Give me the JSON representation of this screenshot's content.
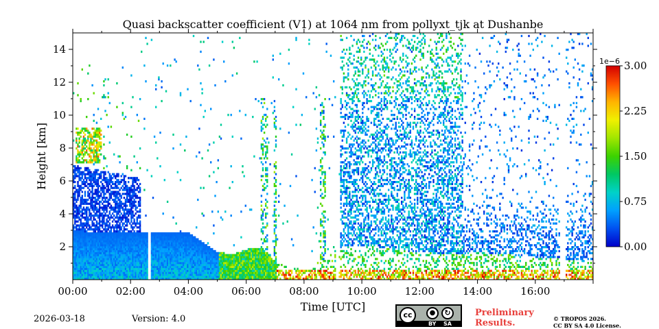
{
  "chart_data": {
    "type": "heatmap",
    "title": "Quasi backscatter coefficient (V1) at 1064 nm from pollyxt_tjk at Dushanbe",
    "xlabel": "Time [UTC]",
    "ylabel": "Height [km]",
    "x_range_hours": [
      0,
      18
    ],
    "y_range_km": [
      0,
      15
    ],
    "x_ticks": [
      {
        "value": 0,
        "label": "00:00"
      },
      {
        "value": 2,
        "label": "02:00"
      },
      {
        "value": 4,
        "label": "04:00"
      },
      {
        "value": 6,
        "label": "06:00"
      },
      {
        "value": 8,
        "label": "08:00"
      },
      {
        "value": 10,
        "label": "10:00"
      },
      {
        "value": 12,
        "label": "12:00"
      },
      {
        "value": 14,
        "label": "14:00"
      },
      {
        "value": 16,
        "label": "16:00"
      }
    ],
    "y_ticks": [
      {
        "value": 2,
        "label": "2"
      },
      {
        "value": 4,
        "label": "4"
      },
      {
        "value": 6,
        "label": "6"
      },
      {
        "value": 8,
        "label": "8"
      },
      {
        "value": 10,
        "label": "10"
      },
      {
        "value": 12,
        "label": "12"
      },
      {
        "value": 14,
        "label": "14"
      }
    ],
    "colorbar": {
      "range": [
        0,
        3.0
      ],
      "exponent_label": "1e−6",
      "ticks": [
        {
          "value": 0.0,
          "label": "0.00"
        },
        {
          "value": 0.75,
          "label": "0.75"
        },
        {
          "value": 1.5,
          "label": "1.50"
        },
        {
          "value": 2.25,
          "label": "2.25"
        },
        {
          "value": 3.0,
          "label": "3.00"
        }
      ],
      "colors": [
        "#0000c8",
        "#0050f0",
        "#00a0ff",
        "#00d2c8",
        "#00c864",
        "#3cd200",
        "#a0e600",
        "#f0f000",
        "#ffb400",
        "#ff5000",
        "#d20000"
      ]
    },
    "data_gaps_hours": [
      [
        2.58,
        2.7
      ],
      [
        9.08,
        9.2
      ],
      [
        16.85,
        17.05
      ]
    ],
    "boundary_layer_top_km": [
      [
        0.0,
        2.9
      ],
      [
        1.0,
        2.85
      ],
      [
        2.5,
        2.85
      ],
      [
        3.0,
        2.85
      ],
      [
        4.0,
        2.8
      ],
      [
        4.5,
        2.2
      ],
      [
        5.0,
        1.6
      ],
      [
        5.5,
        1.5
      ],
      [
        6.0,
        1.8
      ],
      [
        6.5,
        1.9
      ],
      [
        7.0,
        1.0
      ],
      [
        8.0,
        0.5
      ],
      [
        9.3,
        1.9
      ],
      [
        10.0,
        2.0
      ],
      [
        11.0,
        1.8
      ],
      [
        12.0,
        1.6
      ],
      [
        13.0,
        1.5
      ],
      [
        14.0,
        1.6
      ],
      [
        15.0,
        1.5
      ],
      [
        16.0,
        1.3
      ],
      [
        17.0,
        1.2
      ],
      [
        18.0,
        1.0
      ]
    ],
    "aerosol_layer": {
      "start_hour": 0,
      "end_hour": 2.3,
      "top_km_start": 6.9,
      "top_km_end": 6.1
    },
    "elevated_layer": {
      "start_hour": 0.1,
      "end_hour": 1.0,
      "bottom_km": 7.0,
      "top_km": 9.2
    }
  },
  "footer": {
    "date": "2026-03-18",
    "version": "Version: 4.0",
    "preliminary_line1": "Preliminary",
    "preliminary_line2": "Results.",
    "license_line1": "© TROPOS 2026.",
    "license_line2": "CC BY SA 4.0 License.",
    "badge_cc": "cc",
    "badge_by": "BY",
    "badge_sa": "SA"
  }
}
